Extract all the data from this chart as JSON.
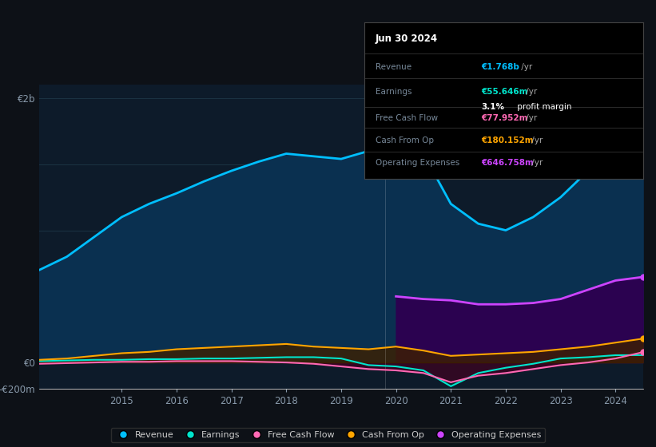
{
  "bg_color": "#0d1117",
  "plot_bg_color": "#0d1b2a",
  "grid_color": "#1e3a4a",
  "text_color": "#8899aa",
  "ylim": [
    -200000000,
    2100000000
  ],
  "years": [
    2013.5,
    2014.0,
    2014.5,
    2015.0,
    2015.5,
    2016.0,
    2016.5,
    2017.0,
    2017.5,
    2018.0,
    2018.5,
    2019.0,
    2019.5,
    2020.0,
    2020.5,
    2021.0,
    2021.5,
    2022.0,
    2022.5,
    2023.0,
    2023.5,
    2024.0,
    2024.5
  ],
  "revenue": [
    700000000,
    800000000,
    950000000,
    1100000000,
    1200000000,
    1280000000,
    1370000000,
    1450000000,
    1520000000,
    1580000000,
    1560000000,
    1540000000,
    1600000000,
    1720000000,
    1580000000,
    1200000000,
    1050000000,
    1000000000,
    1100000000,
    1250000000,
    1450000000,
    1700000000,
    1768000000
  ],
  "earnings": [
    10000000,
    15000000,
    20000000,
    20000000,
    25000000,
    25000000,
    30000000,
    30000000,
    35000000,
    40000000,
    40000000,
    30000000,
    -20000000,
    -30000000,
    -60000000,
    -180000000,
    -80000000,
    -40000000,
    -10000000,
    30000000,
    40000000,
    55000000,
    55646000
  ],
  "free_cash_flow": [
    -10000000,
    -5000000,
    0,
    5000000,
    5000000,
    10000000,
    10000000,
    10000000,
    5000000,
    0,
    -10000000,
    -30000000,
    -50000000,
    -60000000,
    -80000000,
    -150000000,
    -100000000,
    -80000000,
    -50000000,
    -20000000,
    0,
    30000000,
    77952000
  ],
  "cash_from_op": [
    20000000,
    30000000,
    50000000,
    70000000,
    80000000,
    100000000,
    110000000,
    120000000,
    130000000,
    140000000,
    120000000,
    110000000,
    100000000,
    120000000,
    90000000,
    50000000,
    60000000,
    70000000,
    80000000,
    100000000,
    120000000,
    150000000,
    180152000
  ],
  "operating_expenses": [
    0,
    0,
    0,
    0,
    0,
    0,
    0,
    0,
    0,
    0,
    0,
    0,
    0,
    500000000,
    480000000,
    470000000,
    440000000,
    440000000,
    450000000,
    480000000,
    550000000,
    620000000,
    646758000
  ],
  "revenue_color": "#00bfff",
  "revenue_fill": "#0a3050",
  "earnings_color": "#00e5cc",
  "earnings_fill": "#003333",
  "free_cash_flow_color": "#ff69b4",
  "free_cash_flow_fill": "#3d0020",
  "cash_from_op_color": "#ffa500",
  "cash_from_op_fill": "#3d2000",
  "operating_expenses_color": "#cc44ff",
  "operating_expenses_fill": "#2d0050",
  "info_title": "Jun 30 2024",
  "info_revenue_label": "Revenue",
  "info_revenue_val": "€1.768b",
  "info_earnings_label": "Earnings",
  "info_earnings_val": "€55.646m",
  "info_margin_bold": "3.1%",
  "info_margin_rest": " profit margin",
  "info_fcf_label": "Free Cash Flow",
  "info_fcf_val": "€77.952m",
  "info_cashop_label": "Cash From Op",
  "info_cashop_val": "€180.152m",
  "info_opex_label": "Operating Expenses",
  "info_opex_val": "€646.758m",
  "legend_items": [
    "Revenue",
    "Earnings",
    "Free Cash Flow",
    "Cash From Op",
    "Operating Expenses"
  ],
  "legend_colors": [
    "#00bfff",
    "#00e5cc",
    "#ff69b4",
    "#ffa500",
    "#cc44ff"
  ],
  "xtick_years": [
    2015,
    2016,
    2017,
    2018,
    2019,
    2020,
    2021,
    2022,
    2023,
    2024
  ]
}
